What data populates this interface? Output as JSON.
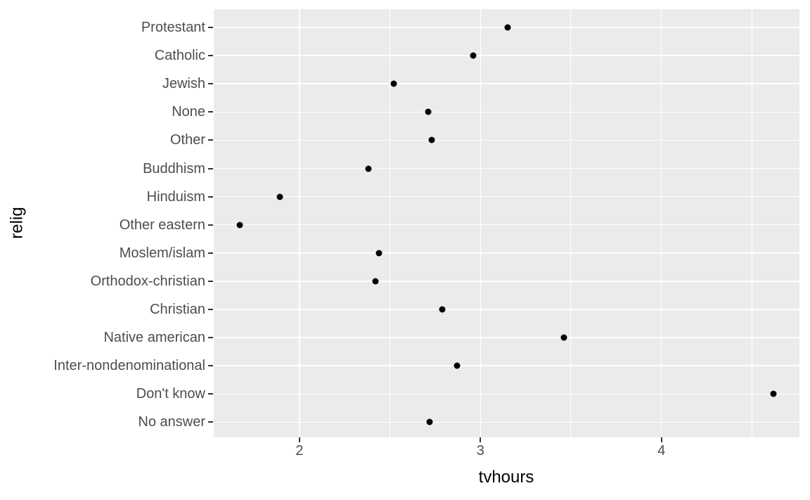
{
  "chart_data": {
    "type": "scatter",
    "title": "",
    "xlabel": "tvhours",
    "ylabel": "relig",
    "orientation": "horizontal-categorical",
    "categories": [
      "Protestant",
      "Catholic",
      "Jewish",
      "None",
      "Other",
      "Buddhism",
      "Hinduism",
      "Other eastern",
      "Moslem/islam",
      "Orthodox-christian",
      "Christian",
      "Native american",
      "Inter-nondenominational",
      "Don't know",
      "No answer"
    ],
    "values": [
      3.15,
      2.96,
      2.52,
      2.71,
      2.73,
      2.38,
      1.89,
      1.67,
      2.44,
      2.42,
      2.79,
      3.46,
      2.87,
      4.62,
      2.72
    ],
    "xlim": [
      1.526,
      4.763
    ],
    "x_major_ticks": [
      2,
      3,
      4
    ],
    "x_minor_gridlines": [
      2.5,
      3.5,
      4.5
    ],
    "grid": "major-grid-both-axes-plus-x-minor, white on gray panel",
    "legend_position": "none",
    "colors": {
      "page_background": "#FFFFFF",
      "panel_background": "#EBEBEB",
      "gridline": "#FFFFFF",
      "point": "#000000",
      "tick_mark": "#333333",
      "axis_text": "#4D4D4D",
      "axis_title": "#000000"
    }
  }
}
